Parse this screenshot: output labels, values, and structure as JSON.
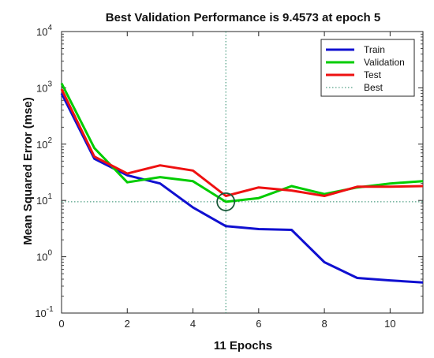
{
  "chart_data": {
    "type": "line",
    "title": "Best Validation Performance is 9.4573 at epoch 5",
    "xlabel": "11 Epochs",
    "ylabel": "Mean Squared Error  (mse)",
    "xlim": [
      0,
      11
    ],
    "ylim": [
      0.1,
      10000
    ],
    "yscale": "log",
    "xticks": [
      0,
      2,
      4,
      6,
      8,
      10
    ],
    "xtick_labels": [
      "0",
      "2",
      "4",
      "6",
      "8",
      "10"
    ],
    "yticks": [
      0.1,
      1,
      10,
      100,
      1000,
      10000
    ],
    "ytick_labels": [
      {
        "base": "10",
        "exp": "-1"
      },
      {
        "base": "10",
        "exp": "0"
      },
      {
        "base": "10",
        "exp": "1"
      },
      {
        "base": "10",
        "exp": "2"
      },
      {
        "base": "10",
        "exp": "3"
      },
      {
        "base": "10",
        "exp": "4"
      }
    ],
    "grid": false,
    "legend_position": "top-right",
    "x": [
      0,
      1,
      2,
      3,
      4,
      5,
      6,
      7,
      8,
      9,
      10,
      11
    ],
    "series": [
      {
        "name": "Train",
        "color": "#1010d0",
        "values": [
          800,
          55,
          28,
          20,
          7.5,
          3.5,
          3.1,
          3.0,
          0.8,
          0.42,
          0.38,
          0.35
        ]
      },
      {
        "name": "Validation",
        "color": "#00cc00",
        "values": [
          1200,
          85,
          21,
          26,
          22,
          9.4573,
          11,
          18,
          13,
          17,
          20,
          22
        ]
      },
      {
        "name": "Test",
        "color": "#ee1111",
        "values": [
          950,
          60,
          30,
          42,
          34,
          12,
          17,
          15,
          12,
          17.5,
          17.5,
          18
        ]
      }
    ],
    "best": {
      "name": "Best",
      "epoch": 5,
      "value": 9.4573,
      "color": "#2a8a6a"
    }
  }
}
